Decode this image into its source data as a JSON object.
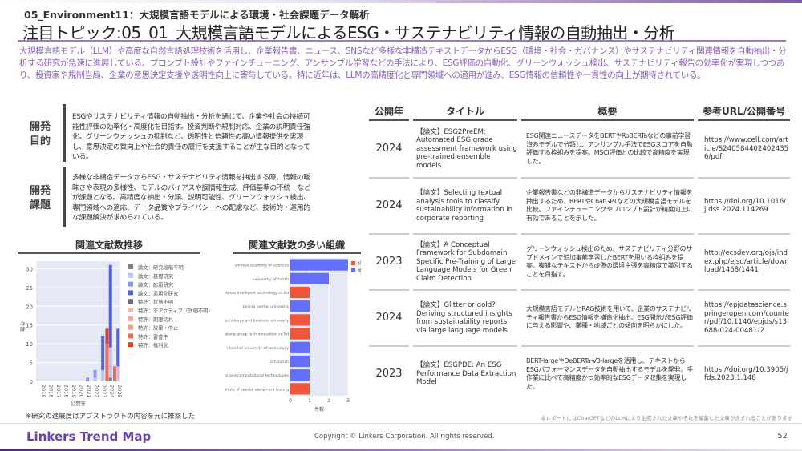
{
  "header": {
    "subtitle": "05_Environment11：大規模言語モデルによる環境・社会課題データ解析",
    "title": "注目トピック:05_01_大規模言語モデルによるESG・サステナビリティ情報の自動抽出・分析",
    "description": "大規模言語モデル（LLM）や高度な自然言語処理技術を活用し、企業報告書、ニュース、SNSなど多様な非構造テキストデータからESG（環境・社会・ガバナンス）やサステナビリティ関連情報を自動抽出・分析する研究が急速に進展している。プロンプト設計やファインチューニング、アンサンブル学習などの手法により、ESG評価の自動化、グリーンウォッシュ検出、サステナビリティ報告の効率化が実現しつつあり、投資家や規制当局、企業の意思決定支援や透明性向上に寄与している。特に近年は、LLMの高精度化と専門領域への適用が進み、ESG情報の信頼性や一貫性の向上が期待されている。"
  },
  "purpose": {
    "label": "開発\n目的",
    "text": "ESGやサステナビリティ情報の自動抽出・分析を通じて、企業や社会の持続可能性評価の効率化・高度化を目指す。投資判断や規制対応、企業の説明責任強化、グリーンウォッシュの抑制など、透明性と信頼性の高い情報提供を実現し、意思決定の質向上や社会的責任の履行を支援することが主な目的となっている。"
  },
  "challenge": {
    "label": "開発\n課題",
    "text": "多様な非構造データからESG・サステナビリティ情報を抽出する際、情報の曖昧さや表現の多様性、モデルのバイアスや誤情報生成、評価基準の不統一などが課題となる。高精度な抽出・分類、説明可能性、グリーンウォッシュ検出、専門領域への適応、データ品質やプライバシーへの配慮など、技術的・運用的な課題解決が求められている。"
  },
  "chart_trend_title": "関連文献数推移",
  "chart_org_title": "関連文献数の多い組織",
  "note": "※研究の進展度はアブストラクトの内容を元に推察した",
  "chart_data": [
    {
      "type": "bar",
      "stacked": true,
      "xlabel": "公開年",
      "ylabel": "件数",
      "ylim": [
        0,
        32
      ],
      "yticks": [
        0,
        5,
        10,
        15,
        20,
        25,
        30
      ],
      "legend_position": "right",
      "grid": true,
      "categories": [
        "2015",
        "2016",
        "2017",
        "2018",
        "2019",
        "2020",
        "2021",
        "2022",
        "2023",
        "2024",
        "2025"
      ],
      "series": [
        {
          "name": "論文：研究段階不明",
          "group": "paper",
          "color": "#7f7f7f",
          "values": [
            0,
            0,
            0,
            0,
            0,
            0,
            0,
            0,
            0,
            1,
            0
          ]
        },
        {
          "name": "論文：基礎研究",
          "group": "paper",
          "color": "#b8c4f2",
          "values": [
            0,
            0,
            0,
            0,
            0,
            0,
            0,
            1,
            3,
            8,
            4
          ]
        },
        {
          "name": "論文：応用研究",
          "group": "paper",
          "color": "#8a97ea",
          "values": [
            0,
            0,
            0,
            0,
            0,
            0,
            1,
            2,
            0,
            0,
            0
          ]
        },
        {
          "name": "論文：実用化研究",
          "group": "paper",
          "color": "#5563e0",
          "values": [
            0,
            0,
            0,
            0,
            0,
            0,
            0,
            0,
            9,
            22,
            10
          ]
        },
        {
          "name": "特許：状態不明",
          "group": "patent",
          "color": "#6b6b6b",
          "values": [
            0,
            0,
            0,
            0,
            0,
            0,
            0,
            0,
            0,
            0,
            0
          ]
        },
        {
          "name": "特許：非アクティブ（詳細不明）",
          "group": "patent",
          "color": "#f4b8b0",
          "values": [
            0,
            0,
            0,
            0,
            0,
            0,
            0,
            0,
            0,
            0,
            0
          ]
        },
        {
          "name": "特許：期限切れ",
          "group": "patent",
          "color": "#f2a79c",
          "values": [
            0,
            0,
            0,
            0,
            0,
            0,
            0,
            0,
            0,
            0,
            0
          ]
        },
        {
          "name": "特許：放棄・中止",
          "group": "patent",
          "color": "#f09a8c",
          "values": [
            0,
            0,
            0,
            0,
            0,
            0,
            0,
            0,
            0,
            0,
            0
          ]
        },
        {
          "name": "特許：審査中",
          "group": "patent",
          "color": "#ee6a50",
          "values": [
            0,
            0,
            0,
            0,
            0,
            0,
            0,
            0,
            0,
            10,
            4
          ]
        },
        {
          "name": "特許：権利化",
          "group": "patent",
          "color": "#d9442c",
          "values": [
            0,
            0,
            0,
            0,
            0,
            0,
            0,
            0,
            0,
            4,
            0
          ]
        }
      ]
    },
    {
      "type": "bar",
      "orientation": "horizontal",
      "xlabel": "件数",
      "xlim": [
        0,
        3
      ],
      "xticks": [
        0,
        1,
        2,
        3
      ],
      "legend_position": "top-right",
      "legend": [
        {
          "name": "特許",
          "color": "#ee553b"
        },
        {
          "name": "論文",
          "color": "#636efa"
        }
      ],
      "categories": [
        "chinese academy of sciences",
        "university of zurich",
        "beijing jiayuto intelligent technology co ltd",
        "beijing normal university",
        "beijing technology and business university",
        "china datang group tech innovation co ltd",
        "nbeidhel university of technology",
        "eth zurich",
        "federal research center for information and computational technologies",
        "fujian research institute of special equipment testing"
      ],
      "values": [
        3,
        2,
        1,
        1,
        1,
        1,
        1,
        1,
        1,
        1
      ],
      "types": [
        "論文",
        "論文",
        "特許",
        "論文",
        "特許",
        "特許",
        "論文",
        "論文",
        "論文",
        "特許"
      ]
    }
  ],
  "table": {
    "headers": [
      "公開年",
      "タイトル",
      "概要",
      "参考URL/公開番号"
    ],
    "rows": [
      {
        "year": "2024",
        "title": "【論文】ESG2PreEM: Automated ESG grade assessment framework using pre-trained ensemble models.",
        "summary": "ESG関連ニュースデータをBERTやRoBERTaなどの事前学習済みモデルで分類し、アンサンブル手法でESGスコアを自動評価する枠組みを提案。MSCI評価との比較で高精度を実現した。",
        "url": "https://www.cell.com/article/S2405844024024356/pdf"
      },
      {
        "year": "2024",
        "title": "【論文】Selecting textual analysis tools to classify sustainability information in corporate reporting",
        "summary": "企業報告書などの非構造データからサステナビリティ情報を抽出するため、BERTやChatGPTなどの大規模言語モデルを比較。ファインチューニングやプロンプト設計が精度向上に有効であることを示した。",
        "url": "https://doi.org/10.1016/j.dss.2024.114269"
      },
      {
        "year": "2023",
        "title": "【論文】A Conceptual Framework for Subdomain Specific Pre-Training of Large Language Models for Green Claim Detection",
        "summary": "グリーンウォッシュ検出のため、サステナビリティ分野のサブドメインで追加事前学習したBERTを用いる枠組みを提案。複雑なテキストから虚偽の環境主張を高精度で識別することを目指す。",
        "url": "http://ecsdev.org/ojs/index.php/ejsd/article/download/1468/1441"
      },
      {
        "year": "2024",
        "title": "【論文】Glitter or gold? Deriving structured insights from sustainability reports via large language models",
        "summary": "大規模言語モデルとRAG技術を用いて、企業のサステナビリティ報告書からESG情報を構造化抽出。ESG開示がESG評価に与える影響や、業種・地域ごとの傾向を明らかにした。",
        "url": "https://epjdatascience.springeropen.com/counter/pdf/10.1140/epjds/s13688-024-00481-2"
      },
      {
        "year": "2023",
        "title": "【論文】ESGPDE: An ESG Performance Data Extraction Model",
        "summary": "BERT-largeやDeBERTa-V3-largeを活用し、テキストからESGパフォーマンスデータを自動抽出するモデルを開発。手作業に比べて高精度かつ効率的なESGデータ収集を実現した。",
        "url": "https://doi.org/10.3905/jfds.2023.1.148"
      }
    ]
  },
  "disclaimer": "本レポートにはChatGPTなどのLLMにより生成された文章やそれを編集した文章が含まれることがあります",
  "footer": {
    "logo": "Linkers Trend Map",
    "copyright": "Copyright © Linkers Corporation. All rights reserved.",
    "page": "52"
  }
}
